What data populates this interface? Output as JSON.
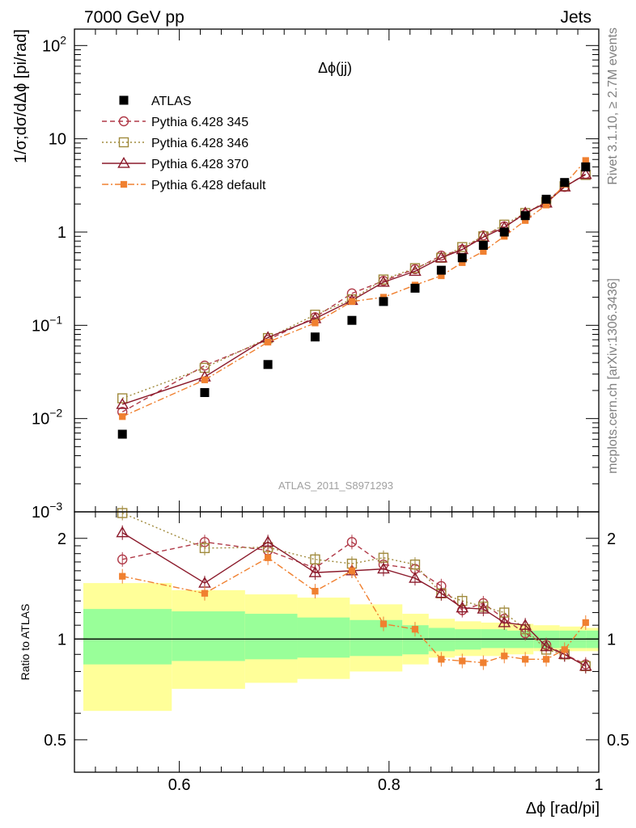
{
  "header": {
    "energy": "7000 GeV pp",
    "category": "Jets"
  },
  "side_labels": {
    "rivet": "Rivet 3.1.10, ≥ 2.7M events",
    "mcplots": "mcplots.cern.ch [arXiv:1306.3436]"
  },
  "chart_data": [
    {
      "type": "scatter",
      "title": "Δϕ(jj)",
      "ylabel": "1/σ;dσ/dΔϕ [pi/rad]",
      "xlabel": "",
      "yscale": "log",
      "ylim": [
        0.001,
        150
      ],
      "xlim": [
        0.5,
        1.0
      ],
      "analysis_label": "ATLAS_2011_S8971293",
      "y_tick_labels": [
        {
          "value": 0.001,
          "base": "10",
          "exp": "−3"
        },
        {
          "value": 0.01,
          "base": "10",
          "exp": "−2"
        },
        {
          "value": 0.1,
          "base": "10",
          "exp": "−1"
        },
        {
          "value": 1,
          "base": "1",
          "exp": ""
        },
        {
          "value": 10,
          "base": "10",
          "exp": ""
        },
        {
          "value": 100,
          "base": "10",
          "exp": "2"
        }
      ],
      "x": [
        0.5457,
        0.6242,
        0.6845,
        0.7295,
        0.7646,
        0.7947,
        0.8248,
        0.8498,
        0.8698,
        0.8899,
        0.9099,
        0.9299,
        0.9499,
        0.9674,
        0.9875
      ],
      "series": [
        {
          "name": "ATLAS",
          "color": "#000000",
          "marker": "filled-square",
          "line": "none",
          "values": [
            0.0068,
            0.019,
            0.038,
            0.075,
            0.113,
            0.18,
            0.25,
            0.39,
            0.53,
            0.72,
            1.0,
            1.5,
            2.25,
            3.4,
            5.0
          ]
        },
        {
          "name": "Pythia 6.428 345",
          "color": "#b03a48",
          "marker": "open-circle",
          "line": "dashed",
          "values": [
            0.0118,
            0.037,
            0.07,
            0.122,
            0.22,
            0.3,
            0.4,
            0.56,
            0.65,
            0.92,
            1.15,
            1.55,
            2.15,
            3.05,
            4.2
          ]
        },
        {
          "name": "Pythia 6.428 346",
          "color": "#a08a3c",
          "marker": "open-square",
          "line": "dotted",
          "values": [
            0.0165,
            0.035,
            0.073,
            0.13,
            0.19,
            0.31,
            0.41,
            0.53,
            0.69,
            0.9,
            1.2,
            1.6,
            2.1,
            3.1,
            4.1
          ]
        },
        {
          "name": "Pythia 6.428 370",
          "color": "#8b1a2b",
          "marker": "open-triangle",
          "line": "solid",
          "values": [
            0.0142,
            0.028,
            0.074,
            0.118,
            0.185,
            0.29,
            0.38,
            0.53,
            0.65,
            0.88,
            1.12,
            1.6,
            2.05,
            3.05,
            4.15
          ]
        },
        {
          "name": "Pythia 6.428 default",
          "color": "#f08030",
          "marker": "filled-small-square",
          "line": "dashdot",
          "values": [
            0.0105,
            0.026,
            0.066,
            0.106,
            0.18,
            0.2,
            0.27,
            0.34,
            0.47,
            0.62,
            0.9,
            1.33,
            1.95,
            3.25,
            5.85
          ]
        }
      ]
    },
    {
      "type": "scatter",
      "title": "",
      "ylabel": "Ratio to ATLAS",
      "xlabel": "Δϕ [rad/pi]",
      "yscale": "log",
      "ylim": [
        0.4,
        2.4
      ],
      "xlim": [
        0.5,
        1.0
      ],
      "x_ticks": [
        0.6,
        0.8,
        1.0
      ],
      "x_tick_labels": [
        "0.6",
        "0.8",
        "1"
      ],
      "y_ticks": [
        0.5,
        1,
        2
      ],
      "y_tick_labels": [
        "0.5",
        "1",
        "2"
      ],
      "x": [
        0.5457,
        0.6242,
        0.6845,
        0.7295,
        0.7646,
        0.7947,
        0.8248,
        0.8498,
        0.8698,
        0.8899,
        0.9099,
        0.9299,
        0.9499,
        0.9674,
        0.9875
      ],
      "uncertainty_bands": {
        "edges": [
          0.5,
          0.5928,
          0.6627,
          0.7126,
          0.7626,
          0.8127,
          0.8378,
          0.8627,
          0.8878,
          0.9128,
          0.9377,
          0.9627,
          0.9878,
          1.0
        ],
        "yellow_low": [
          0.61,
          0.71,
          0.74,
          0.76,
          0.8,
          0.84,
          0.88,
          0.89,
          0.89,
          0.9,
          0.92,
          0.92,
          0.92
        ],
        "yellow_high": [
          1.47,
          1.4,
          1.36,
          1.33,
          1.27,
          1.19,
          1.15,
          1.13,
          1.12,
          1.11,
          1.1,
          1.09,
          1.08
        ],
        "green_low": [
          0.84,
          0.86,
          0.87,
          0.88,
          0.89,
          0.9,
          0.92,
          0.93,
          0.94,
          0.94,
          0.94,
          0.94,
          0.94
        ],
        "green_high": [
          1.23,
          1.21,
          1.19,
          1.16,
          1.14,
          1.1,
          1.08,
          1.07,
          1.07,
          1.06,
          1.06,
          1.06,
          1.06
        ],
        "yellow_color": "#ffff99",
        "green_color": "#99ff99"
      },
      "series": [
        {
          "name": "Pythia 6.428 345",
          "color": "#b03a48",
          "marker": "open-circle",
          "line": "dashed",
          "values": [
            1.73,
            1.95,
            1.84,
            1.63,
            1.95,
            1.67,
            1.62,
            1.44,
            1.22,
            1.28,
            1.15,
            1.04,
            0.96,
            0.9,
            0.84
          ]
        },
        {
          "name": "Pythia 6.428 346",
          "color": "#a08a3c",
          "marker": "open-square",
          "line": "dotted",
          "values": [
            2.38,
            1.87,
            1.88,
            1.73,
            1.68,
            1.75,
            1.67,
            1.37,
            1.3,
            1.25,
            1.2,
            1.07,
            0.93,
            0.9,
            0.83
          ]
        },
        {
          "name": "Pythia 6.428 370",
          "color": "#8b1a2b",
          "marker": "open-triangle",
          "line": "solid",
          "values": [
            2.08,
            1.47,
            1.95,
            1.58,
            1.6,
            1.62,
            1.52,
            1.37,
            1.24,
            1.23,
            1.12,
            1.1,
            0.95,
            0.9,
            0.83
          ]
        },
        {
          "name": "Pythia 6.428 default",
          "color": "#f08030",
          "marker": "filled-small-square",
          "line": "dashdot",
          "values": [
            1.54,
            1.37,
            1.75,
            1.39,
            1.6,
            1.11,
            1.07,
            0.87,
            0.86,
            0.85,
            0.89,
            0.87,
            0.87,
            0.93,
            1.12
          ]
        }
      ]
    }
  ]
}
